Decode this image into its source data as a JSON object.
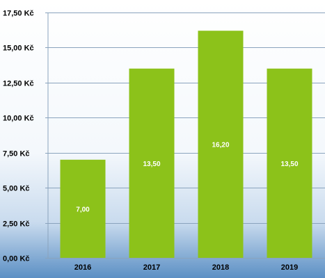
{
  "chart_data": {
    "type": "bar",
    "categories": [
      "2016",
      "2017",
      "2018",
      "2019"
    ],
    "values": [
      7.0,
      13.5,
      16.2,
      13.5
    ],
    "data_labels": [
      "7,00",
      "13,50",
      "16,20",
      "13,50"
    ],
    "y_tick_labels": [
      "0,00 Kč",
      "2,50 Kč",
      "5,00 Kč",
      "7,50 Kč",
      "10,00 Kč",
      "12,50 Kč",
      "15,00 Kč",
      "17,50 Kč"
    ],
    "y_ticks": [
      0,
      2.5,
      5,
      7.5,
      10,
      12.5,
      15,
      17.5
    ],
    "ylim": [
      0,
      17.5
    ],
    "title": "",
    "xlabel": "",
    "ylabel": "",
    "grid": true,
    "legend": "none",
    "colors": {
      "bar": "#8cc21a",
      "background_top": "#ffffff",
      "background_bottom": "#5b8fc4",
      "gridline": "#8aa3bd",
      "data_label": "#ffffff"
    }
  }
}
